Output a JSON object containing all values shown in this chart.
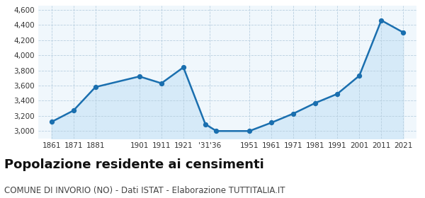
{
  "years": [
    1861,
    1871,
    1881,
    1901,
    1911,
    1921,
    1931,
    1936,
    1951,
    1961,
    1971,
    1981,
    1991,
    2001,
    2011,
    2021
  ],
  "population": [
    3120,
    3270,
    3580,
    3720,
    3630,
    3840,
    3090,
    3000,
    3000,
    3110,
    3230,
    3370,
    3490,
    3730,
    4460,
    4300
  ],
  "x_tick_positions": [
    1861,
    1871,
    1881,
    1901,
    1911,
    1921,
    1933,
    1951,
    1961,
    1971,
    1981,
    1991,
    2001,
    2011,
    2021
  ],
  "x_tick_labels": [
    "1861",
    "1871",
    "1881",
    "1901",
    "1911",
    "1921",
    "'31'36",
    "1951",
    "1961",
    "1971",
    "1981",
    "1991",
    "2001",
    "2011",
    "2021"
  ],
  "ylim": [
    2900,
    4650
  ],
  "yticks": [
    3000,
    3200,
    3400,
    3600,
    3800,
    4000,
    4200,
    4400,
    4600
  ],
  "line_color": "#1a6faf",
  "fill_color": "#d6eaf8",
  "marker_color": "#1a6faf",
  "grid_color": "#b8cfe0",
  "bg_color": "#f0f7fc",
  "title": "Popolazione residente ai censimenti",
  "subtitle": "COMUNE DI INVORIO (NO) - Dati ISTAT - Elaborazione TUTTITALIA.IT",
  "title_fontsize": 13,
  "subtitle_fontsize": 8.5
}
